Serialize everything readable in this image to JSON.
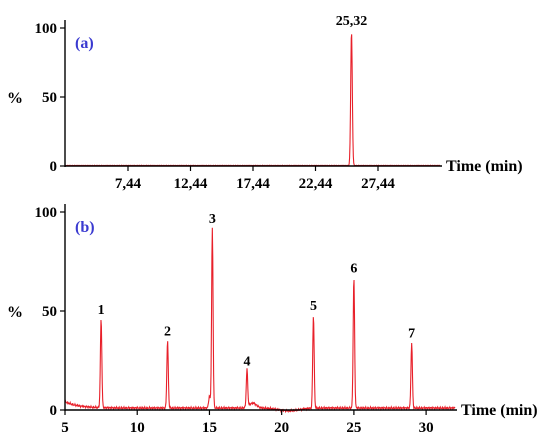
{
  "chart_data": [
    {
      "type": "line",
      "panel_label": "(a)",
      "ylabel": "%",
      "xlabel": "Time (min)",
      "xlim": [
        2.4,
        32.4
      ],
      "ylim": [
        0,
        100
      ],
      "y_ticks": [
        "0",
        "50",
        "100"
      ],
      "x_ticks": [
        "7,44",
        "12,44",
        "17,44",
        "22,44",
        "27,44"
      ],
      "x_tick_values": [
        7.44,
        12.44,
        17.44,
        22.44,
        27.44
      ],
      "peaks": [
        {
          "label": "25,32",
          "x": 25.32,
          "y": 97
        }
      ],
      "series": [
        {
          "color": "#e8202a"
        }
      ]
    },
    {
      "type": "line",
      "panel_label": "(b)",
      "ylabel": "%",
      "xlabel": "Time (min)",
      "xlim": [
        5,
        32
      ],
      "ylim": [
        0,
        100
      ],
      "y_ticks": [
        "0",
        "50",
        "100"
      ],
      "x_ticks": [
        "5",
        "10",
        "15",
        "20",
        "25",
        "30"
      ],
      "x_tick_values": [
        5,
        10,
        15,
        20,
        25,
        30
      ],
      "peaks": [
        {
          "label": "1",
          "x": 7.5,
          "y": 45
        },
        {
          "label": "2",
          "x": 12.1,
          "y": 34
        },
        {
          "label": "3",
          "x": 15.2,
          "y": 91
        },
        {
          "label": "4",
          "x": 17.6,
          "y": 19
        },
        {
          "label": "5",
          "x": 22.2,
          "y": 47
        },
        {
          "label": "6",
          "x": 25.0,
          "y": 66
        },
        {
          "label": "7",
          "x": 29.0,
          "y": 33
        }
      ],
      "series": [
        {
          "color": "#e8202a"
        }
      ]
    }
  ]
}
